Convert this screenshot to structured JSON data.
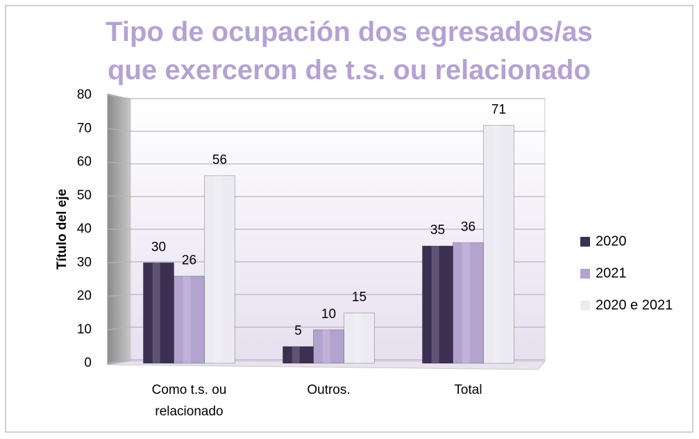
{
  "chart_data": {
    "type": "bar",
    "title": "Tipo de ocupación dos egresados/as que exerceron de t.s. ou relacionado",
    "ylabel": "Título del eje",
    "categories": [
      "Como t.s. ou relacionado",
      "Outros.",
      "Total"
    ],
    "series": [
      {
        "name": "2020",
        "color": "#3b2f52",
        "values": [
          30,
          5,
          35
        ]
      },
      {
        "name": "2021",
        "color": "#b3a3cf",
        "values": [
          26,
          10,
          36
        ]
      },
      {
        "name": "2020 e 2021",
        "color": "#ecebf1",
        "values": [
          56,
          15,
          71
        ]
      }
    ],
    "ylim": [
      0,
      80
    ],
    "yticks": [
      0,
      10,
      20,
      30,
      40,
      50,
      60,
      70,
      80
    ],
    "grid": true,
    "legend": "right"
  }
}
